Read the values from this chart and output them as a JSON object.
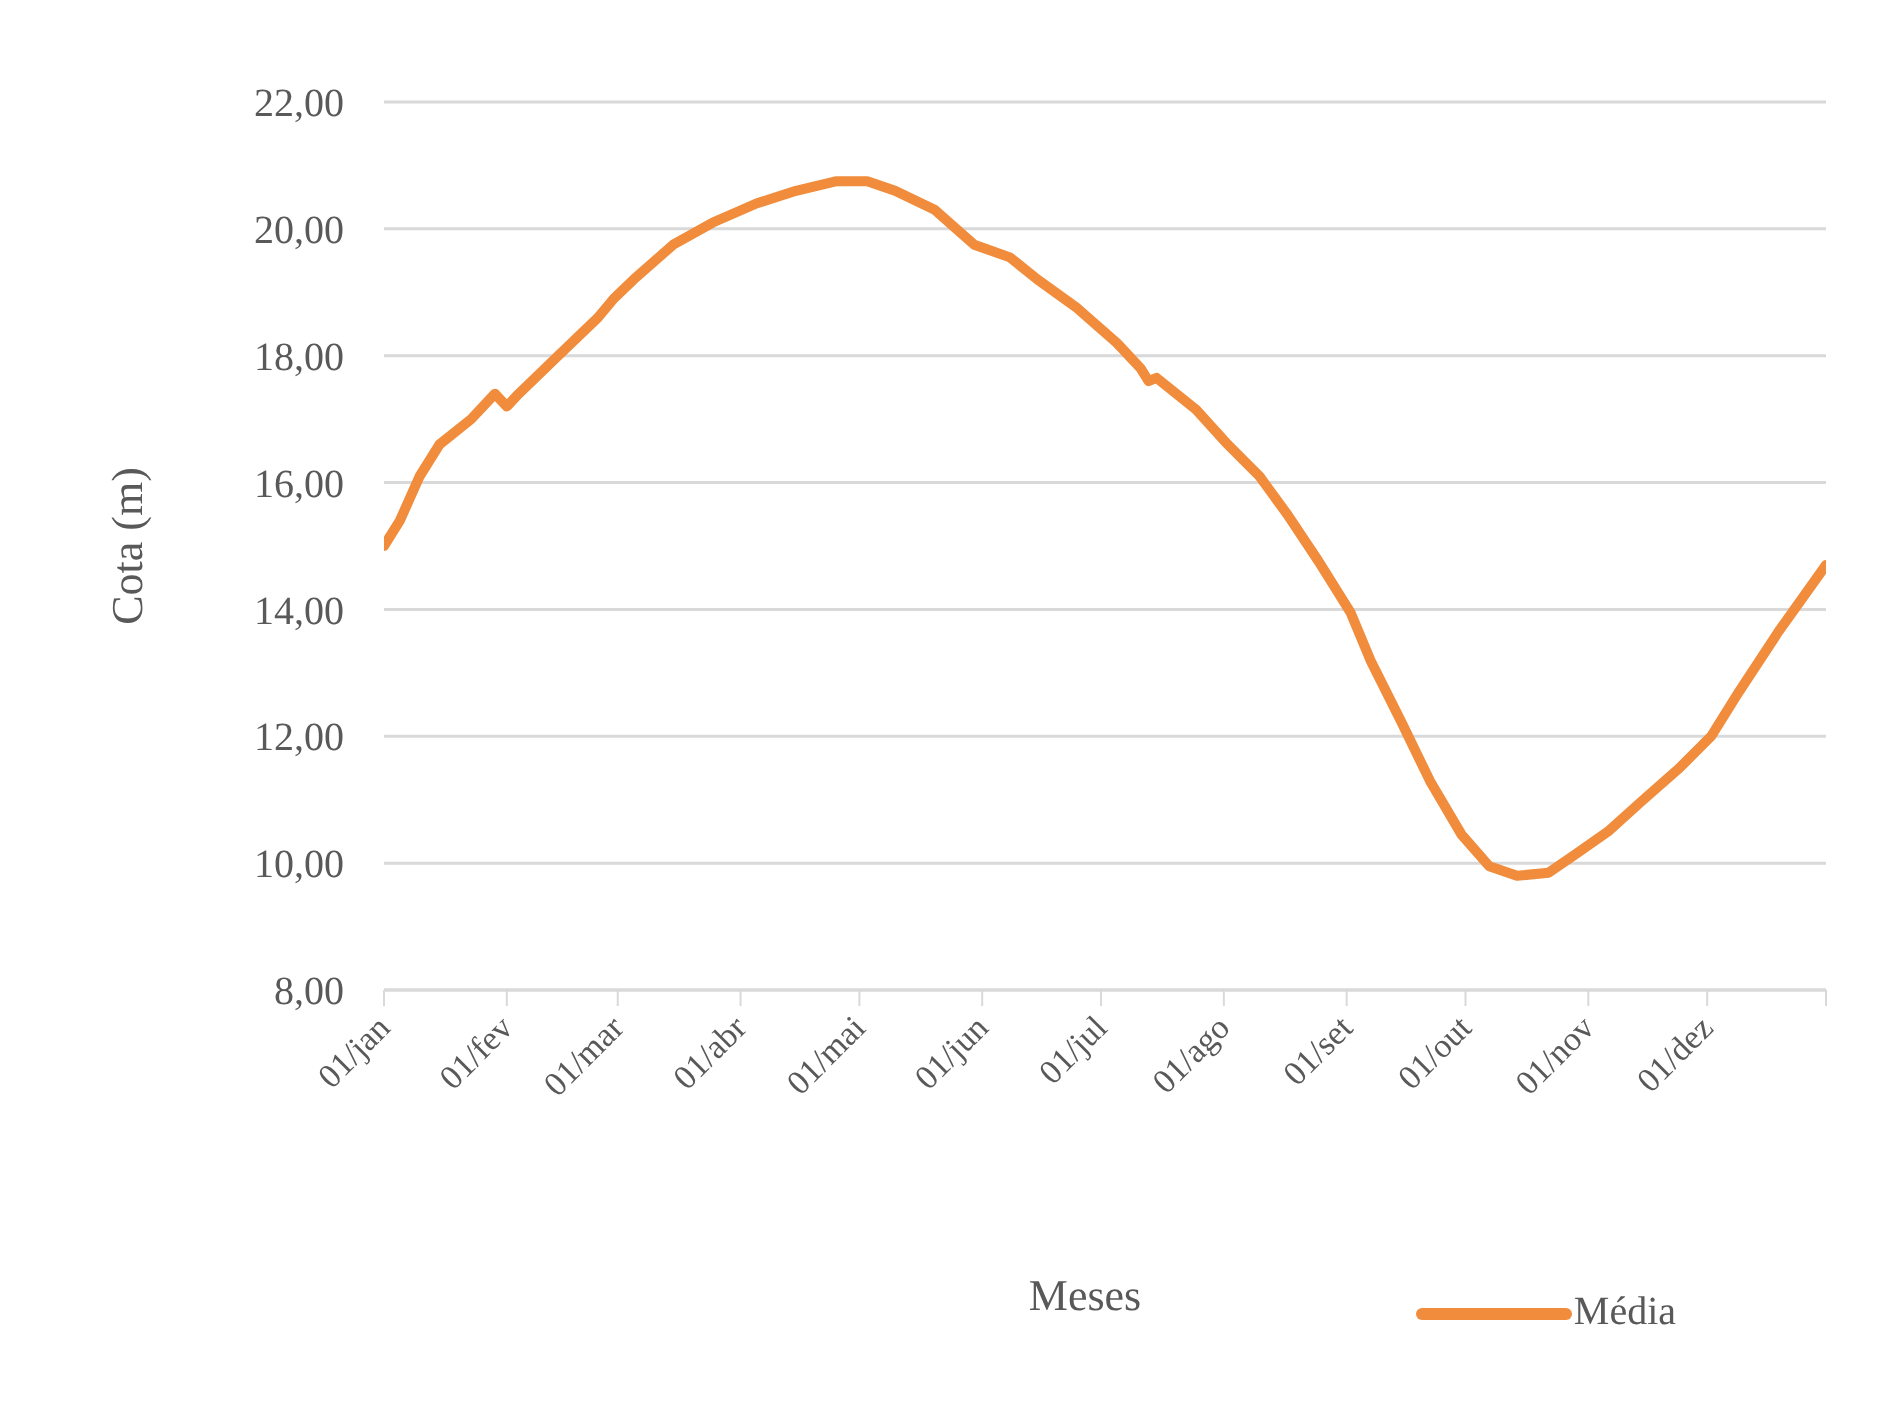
{
  "chart_data": {
    "type": "line",
    "xlabel": "Meses",
    "ylabel": "Cota (m)",
    "x": [
      "--01-01",
      "--01-05",
      "--01-10",
      "--01-15",
      "--01-23",
      "--01-29",
      "--02-01",
      "--02-04",
      "--02-14",
      "--02-24",
      "--02-28",
      "--03-05",
      "--03-15",
      "--03-25",
      "--04-05",
      "--04-15",
      "--04-25",
      "--05-03",
      "--05-10",
      "--05-20",
      "--05-30",
      "--06-08",
      "--06-15",
      "--06-25",
      "--07-05",
      "--07-11",
      "--07-13",
      "--07-15",
      "--07-25",
      "--08-02",
      "--08-10",
      "--08-17",
      "--08-25",
      "--09-02",
      "--09-07",
      "--09-15",
      "--09-22",
      "--09-30",
      "--10-07",
      "--10-14",
      "--10-22",
      "--10-29",
      "--11-06",
      "--11-14",
      "--11-24",
      "--12-02",
      "--12-09",
      "--12-19",
      "--12-31"
    ],
    "series": [
      {
        "name": "Média",
        "color": "#f08c3c",
        "values": [
          15.0,
          15.4,
          16.1,
          16.6,
          17.0,
          17.4,
          17.2,
          17.4,
          18.0,
          18.6,
          18.9,
          19.2,
          19.75,
          20.1,
          20.4,
          20.6,
          20.75,
          20.75,
          20.6,
          20.3,
          19.75,
          19.55,
          19.2,
          18.75,
          18.2,
          17.8,
          17.6,
          17.65,
          17.15,
          16.6,
          16.1,
          15.5,
          14.75,
          13.95,
          13.2,
          12.2,
          11.3,
          10.45,
          9.95,
          9.8,
          9.85,
          10.15,
          10.5,
          10.95,
          11.5,
          12.0,
          12.7,
          13.65,
          14.7
        ]
      }
    ],
    "xlim": [
      "--01-01",
      "--12-31"
    ],
    "xticks": [
      {
        "value": "--01-01",
        "label": "01/jan"
      },
      {
        "value": "--02-01",
        "label": "01/fev"
      },
      {
        "value": "--03-01",
        "label": "01/mar"
      },
      {
        "value": "--04-01",
        "label": "01/abr"
      },
      {
        "value": "--05-01",
        "label": "01/mai"
      },
      {
        "value": "--06-01",
        "label": "01/jun"
      },
      {
        "value": "--07-01",
        "label": "01/jul"
      },
      {
        "value": "--08-01",
        "label": "01/ago"
      },
      {
        "value": "--09-01",
        "label": "01/set"
      },
      {
        "value": "--10-01",
        "label": "01/out"
      },
      {
        "value": "--11-01",
        "label": "01/nov"
      },
      {
        "value": "--12-01",
        "label": "01/dez"
      },
      {
        "value": "--12-31",
        "label": null
      }
    ],
    "ylim": [
      8,
      22
    ],
    "yticks": [
      {
        "value": 8,
        "label": "8,00"
      },
      {
        "value": 10,
        "label": "10,00"
      },
      {
        "value": 12,
        "label": "12,00"
      },
      {
        "value": 14,
        "label": "14,00"
      },
      {
        "value": 16,
        "label": "16,00"
      },
      {
        "value": 18,
        "label": "18,00"
      },
      {
        "value": 20,
        "label": "20,00"
      },
      {
        "value": 22,
        "label": "22,00"
      }
    ],
    "grid": "y",
    "legend": "bottom",
    "marker": "none",
    "line_style": "solid"
  }
}
